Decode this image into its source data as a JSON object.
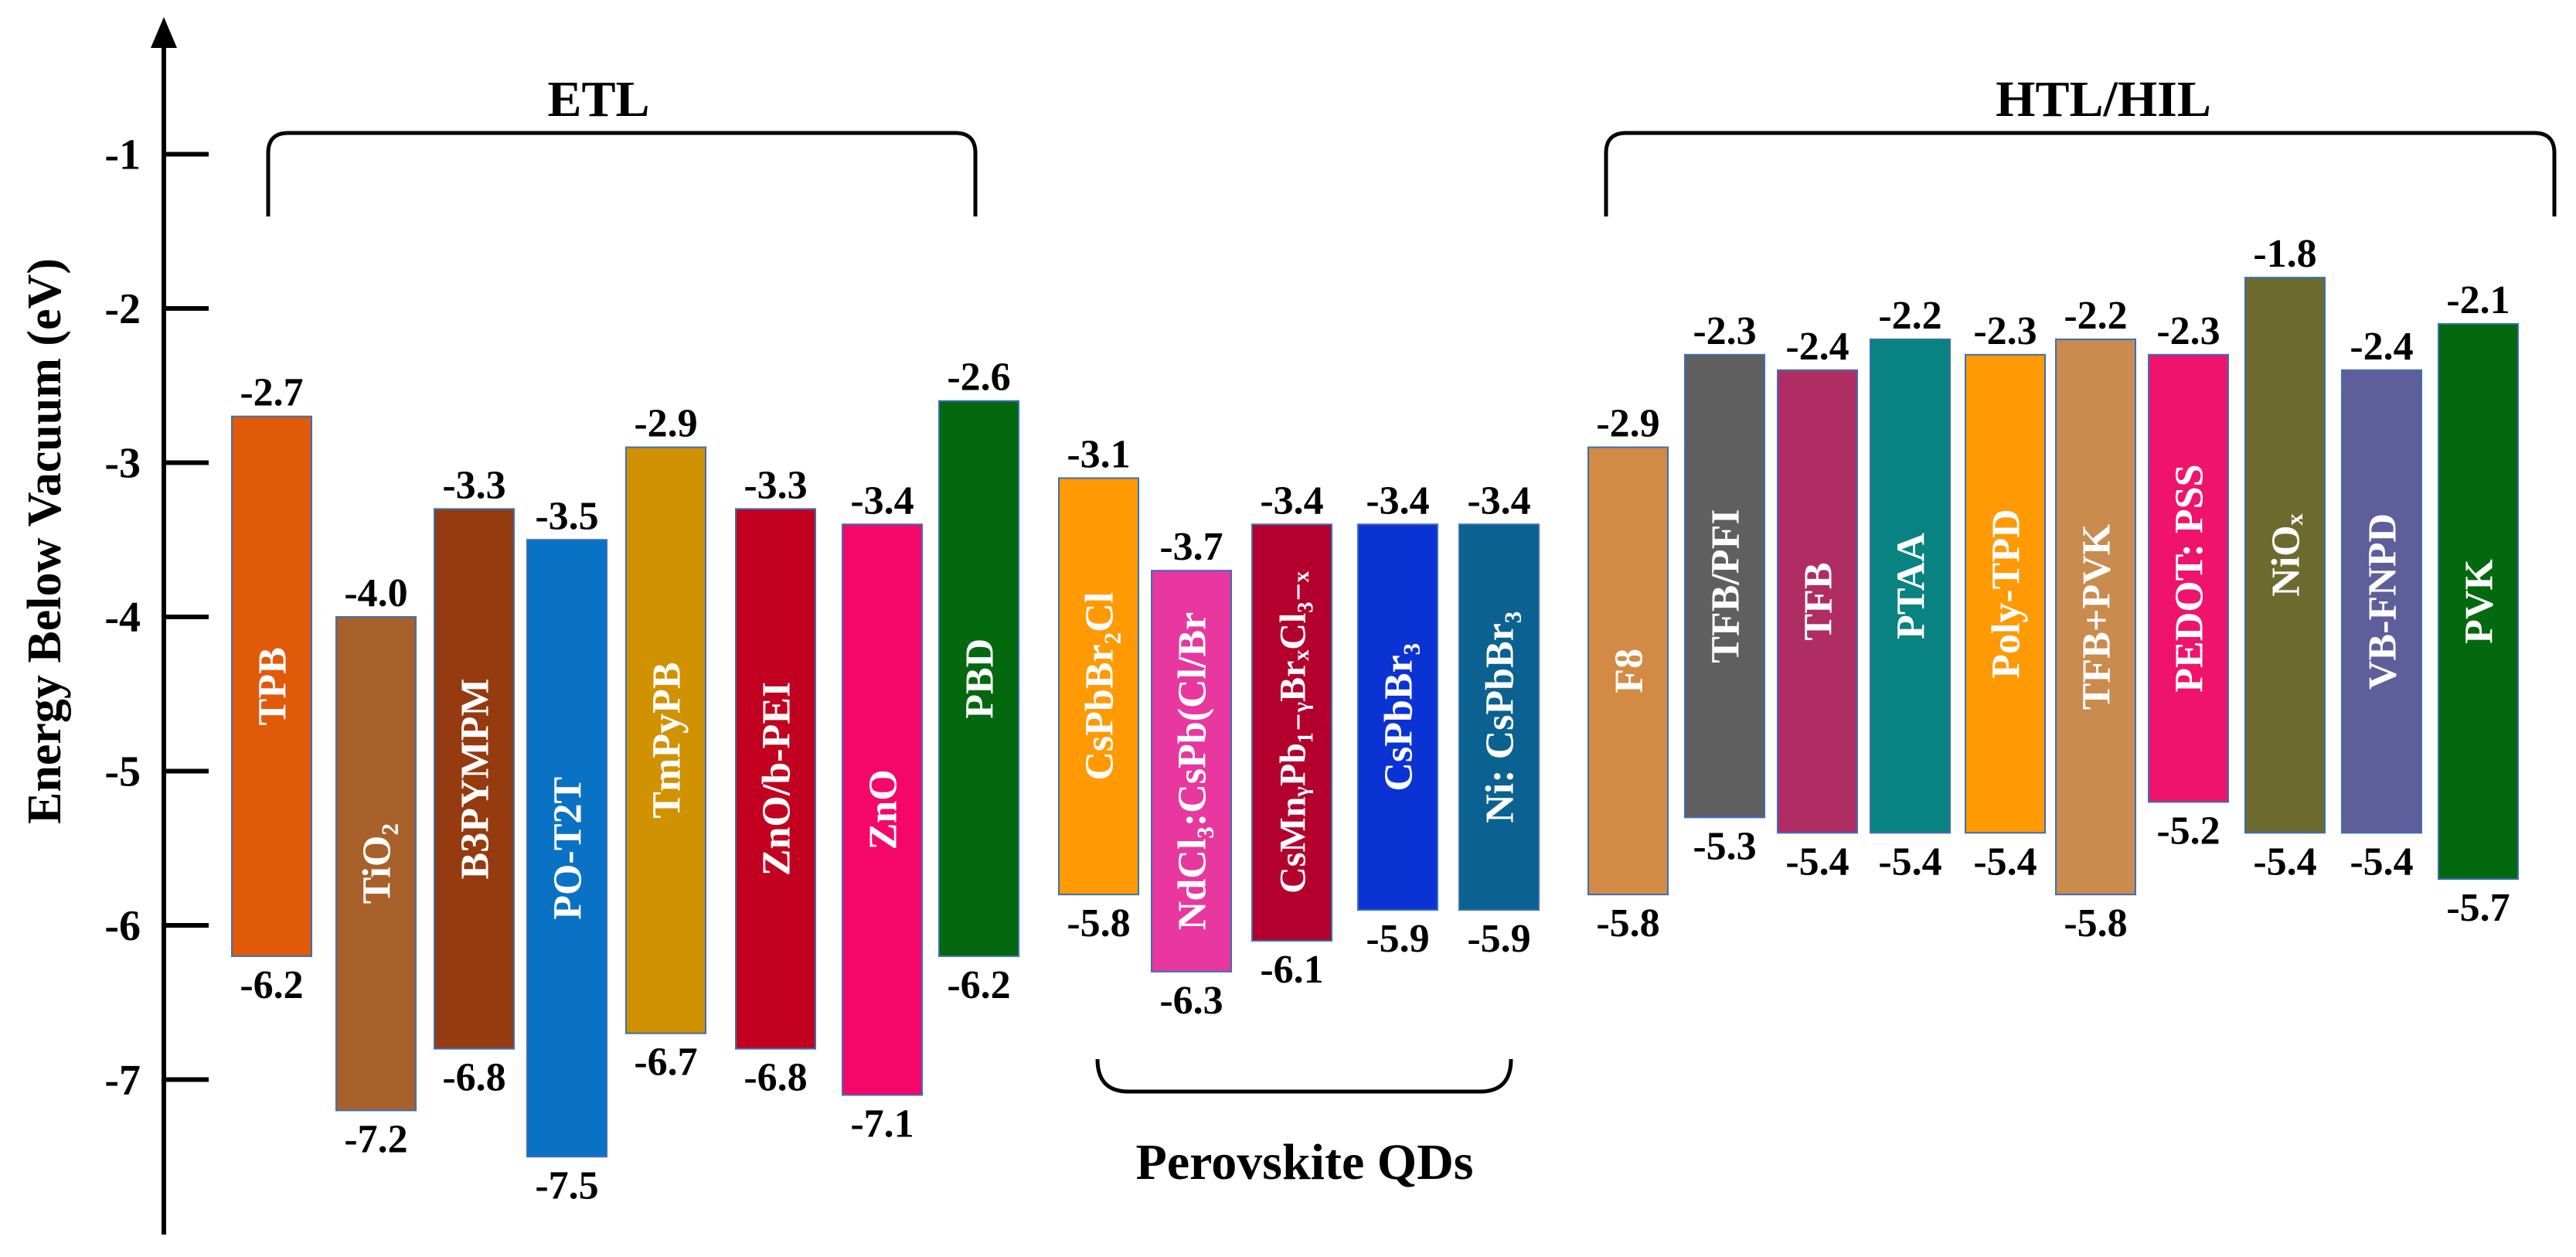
{
  "chart_data": {
    "type": "bar",
    "title": "",
    "ylabel": "Energy Below Vacuum  (eV)",
    "xlabel": "",
    "ylim": [
      -7.9,
      0
    ],
    "y_ticks": [
      -1,
      -2,
      -3,
      -4,
      -5,
      -6,
      -7
    ],
    "y_tick_labels": [
      "-1",
      "-2",
      "-3",
      "-4",
      "-5",
      "-6",
      "-7"
    ],
    "groups": [
      {
        "label": "ETL",
        "from": 0,
        "to": 7,
        "bracket": "top"
      },
      {
        "label": "Perovskite QDs",
        "from": 8,
        "to": 12,
        "bracket": "bottom"
      },
      {
        "label": "HTL/HIL",
        "from": 13,
        "to": 22,
        "bracket": "top"
      }
    ],
    "bars": [
      {
        "name": "TPB",
        "top": -2.7,
        "bottom": -6.2,
        "top_label": "-2.7",
        "bottom_label": "-6.2",
        "color": "#E05A0A"
      },
      {
        "name": "TiO₂",
        "top": -4.0,
        "bottom": -7.2,
        "top_label": "-4.0",
        "bottom_label": "-7.2",
        "color": "#A8612B"
      },
      {
        "name": "B3PYMPM",
        "top": -3.3,
        "bottom": -6.8,
        "top_label": "-3.3",
        "bottom_label": "-6.8",
        "color": "#963A0F"
      },
      {
        "name": "PO-T2T",
        "top": -3.5,
        "bottom": -7.5,
        "top_label": "-3.5",
        "bottom_label": "-7.5",
        "color": "#0A72C4"
      },
      {
        "name": "TmPyPB",
        "top": -2.9,
        "bottom": -6.7,
        "top_label": "-2.9",
        "bottom_label": "-6.7",
        "color": "#D09200"
      },
      {
        "name": "ZnO/b-PEI",
        "top": -3.3,
        "bottom": -6.8,
        "top_label": "-3.3",
        "bottom_label": "-6.8",
        "color": "#C2001F"
      },
      {
        "name": "ZnO",
        "top": -3.4,
        "bottom": -7.1,
        "top_label": "-3.4",
        "bottom_label": "-7.1",
        "color": "#F5076A"
      },
      {
        "name": "PBD",
        "top": -2.6,
        "bottom": -6.2,
        "top_label": "-2.6",
        "bottom_label": "-6.2",
        "color": "#03680E"
      },
      {
        "name": "CsPbBr₂Cl",
        "top": -3.1,
        "bottom": -5.8,
        "top_label": "-3.1",
        "bottom_label": "-5.8",
        "color": "#FF9A05"
      },
      {
        "name": "NdCl₃:CsPb(Cl/Br",
        "top": -3.7,
        "bottom": -6.3,
        "top_label": "-3.7",
        "bottom_label": "-6.3",
        "color": "#E8379F"
      },
      {
        "name": "CsMnᵧPb₁₋ᵧBrₓCl₃₋ₓ",
        "top": -3.4,
        "bottom": -6.1,
        "top_label": "-3.4",
        "bottom_label": "-6.1",
        "color": "#B4002C"
      },
      {
        "name": "CsPbBr₃",
        "top": -3.4,
        "bottom": -5.9,
        "top_label": "-3.4",
        "bottom_label": "-5.9",
        "color": "#0B33D4"
      },
      {
        "name": "Ni: CsPbBr₃",
        "top": -3.4,
        "bottom": -5.9,
        "top_label": "-3.4",
        "bottom_label": "-5.9",
        "color": "#0B6190"
      },
      {
        "name": "F8",
        "top": -2.9,
        "bottom": -5.8,
        "top_label": "-2.9",
        "bottom_label": "-5.8",
        "color": "#D38A45"
      },
      {
        "name": "TFB/PFI",
        "top": -2.3,
        "bottom": -5.3,
        "top_label": "-2.3",
        "bottom_label": "-5.3",
        "color": "#5F5F5F"
      },
      {
        "name": "TFB",
        "top": -2.4,
        "bottom": -5.4,
        "top_label": "-2.4",
        "bottom_label": "-5.4",
        "color": "#B02D63"
      },
      {
        "name": "PTAA",
        "top": -2.2,
        "bottom": -5.4,
        "top_label": "-2.2",
        "bottom_label": "-5.4",
        "color": "#098381"
      },
      {
        "name": "Poly-TPD",
        "top": -2.3,
        "bottom": -5.4,
        "top_label": "-2.3",
        "bottom_label": "-5.4",
        "color": "#FF9A05"
      },
      {
        "name": "TFB+PVK",
        "top": -2.2,
        "bottom": -5.8,
        "top_label": "-2.2",
        "bottom_label": "-5.8",
        "color": "#C98B4E"
      },
      {
        "name": "PEDOT: PSS",
        "top": -2.3,
        "bottom": -5.2,
        "top_label": "-2.3",
        "bottom_label": "-5.2",
        "color": "#F0136C"
      },
      {
        "name": "NiOₓ",
        "top": -1.8,
        "bottom": -5.4,
        "top_label": "-1.8",
        "bottom_label": "-5.4",
        "color": "#6C6A2E"
      },
      {
        "name": "VB-FNPD",
        "top": -2.4,
        "bottom": -5.4,
        "top_label": "-2.4",
        "bottom_label": "-5.4",
        "color": "#5E5E9B"
      },
      {
        "name": "PVK",
        "top": -2.1,
        "bottom": -5.7,
        "top_label": "-2.1",
        "bottom_label": "-5.7",
        "color": "#03690E"
      }
    ]
  }
}
